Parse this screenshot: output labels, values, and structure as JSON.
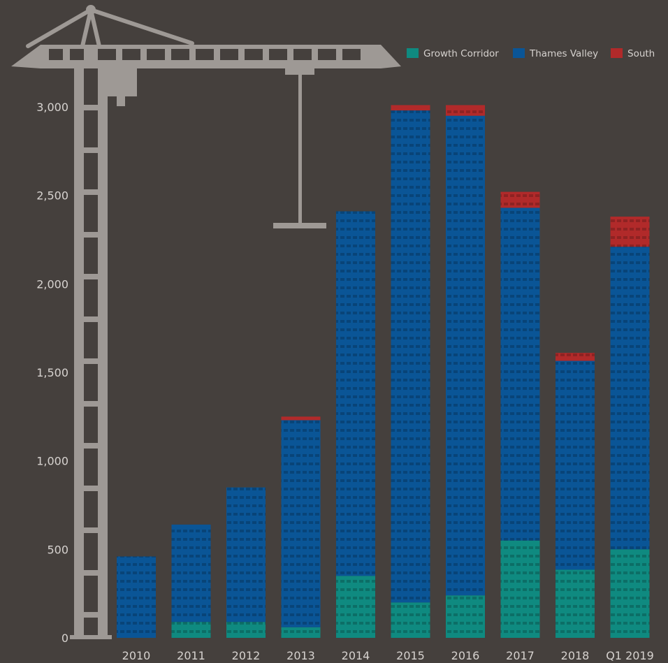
{
  "chart_data": {
    "type": "bar",
    "stacked": true,
    "title": "",
    "xlabel": "",
    "ylabel": "",
    "ylim": [
      0,
      3000
    ],
    "yticks": [
      {
        "value": 0,
        "label": "0"
      },
      {
        "value": 500,
        "label": "500"
      },
      {
        "value": 1000,
        "label": "1,000"
      },
      {
        "value": 1500,
        "label": "1,500"
      },
      {
        "value": 2000,
        "label": "2,000"
      },
      {
        "value": 2500,
        "label": "2,500"
      },
      {
        "value": 3000,
        "label": "3,000"
      }
    ],
    "grid": false,
    "legend_position": "top-right",
    "categories": [
      "2010",
      "2011",
      "2012",
      "2013",
      "2014",
      "2015",
      "2016",
      "2017",
      "2018",
      "Q1 2019"
    ],
    "series": [
      {
        "name": "Growth Corridor",
        "color": "#0f8a80",
        "values": [
          0,
          90,
          90,
          60,
          350,
          200,
          240,
          550,
          385,
          500
        ]
      },
      {
        "name": "Thames Valley",
        "color": "#0a5596",
        "values": [
          460,
          550,
          760,
          1170,
          2060,
          2780,
          2710,
          1880,
          1180,
          1710
        ]
      },
      {
        "name": "South",
        "color": "#b12a2a",
        "values": [
          0,
          0,
          0,
          20,
          0,
          30,
          60,
          90,
          45,
          170
        ]
      }
    ]
  },
  "colors": {
    "background": "#45403d",
    "crane": "#9e9995",
    "text": "#d6d2cf"
  },
  "decoration": {
    "icon": "tower-crane-icon"
  }
}
